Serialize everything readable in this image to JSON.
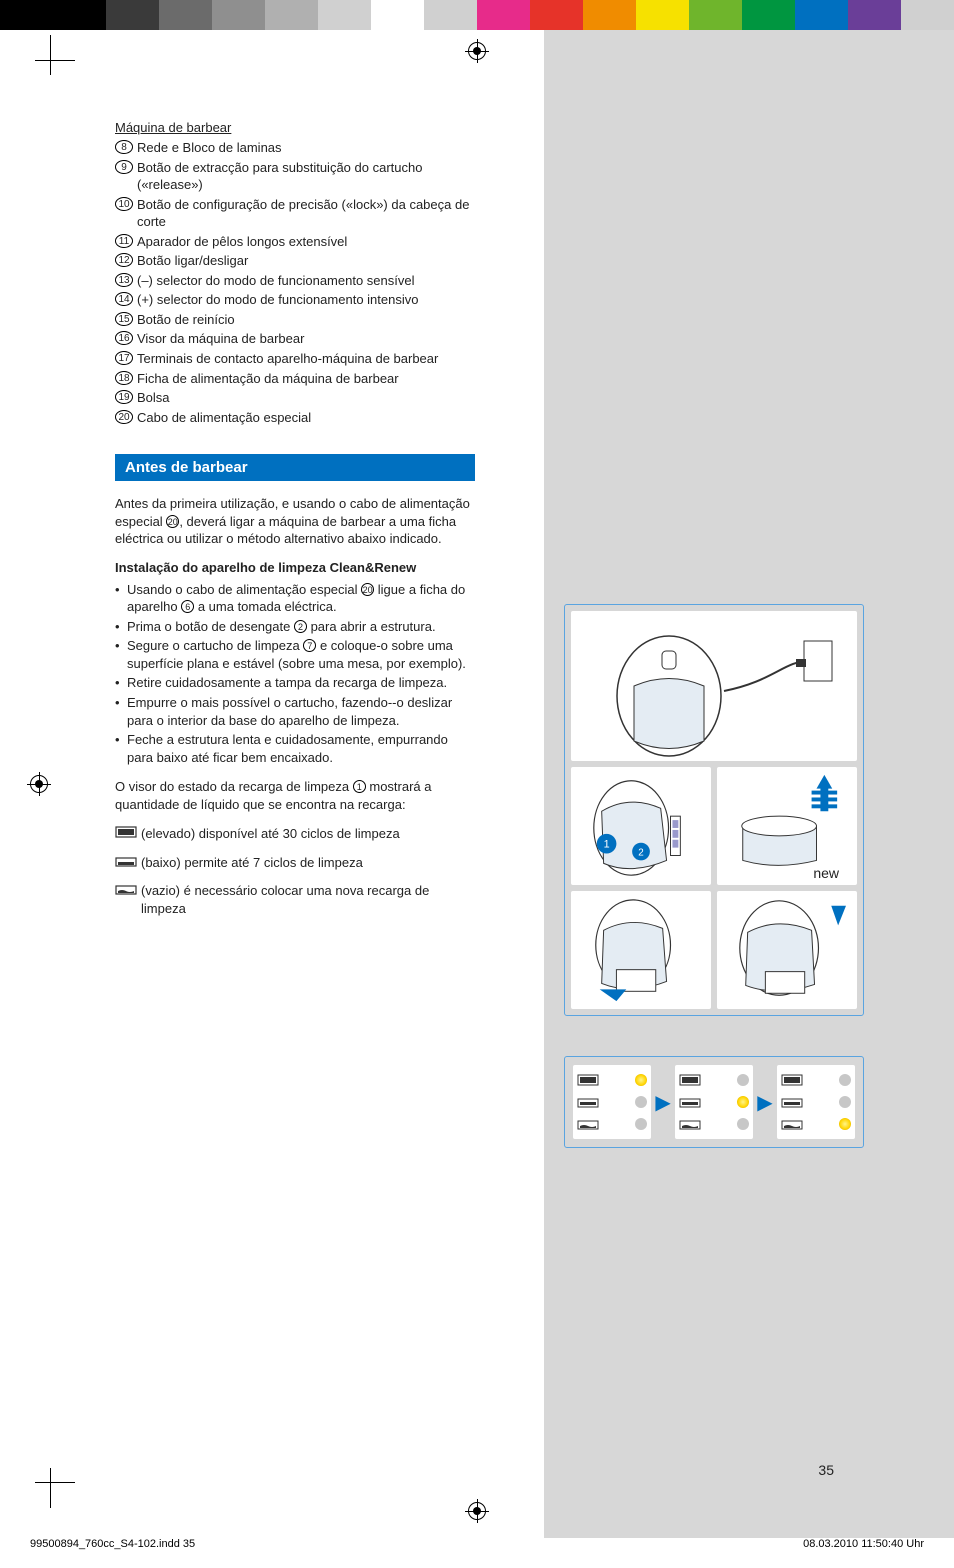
{
  "colorBars": [
    "#000000",
    "#000000",
    "#3a3a3a",
    "#6b6b6b",
    "#8f8f8f",
    "#b0b0b0",
    "#d0d0d0",
    "#ffffff",
    "#d0d0d0",
    "#e72b8a",
    "#e63329",
    "#f08c00",
    "#f6e100",
    "#6fb52c",
    "#009640",
    "#0070c0",
    "#6a3e98",
    "#d0d0d0"
  ],
  "parts": {
    "title": "Máquina de barbear",
    "items": [
      {
        "n": "8",
        "t": "Rede e Bloco de laminas"
      },
      {
        "n": "9",
        "t": "Botão de extracção para substituição do cartucho («release»)"
      },
      {
        "n": "10",
        "t": "Botão de configuração de precisão («lock») da cabeça de corte"
      },
      {
        "n": "11",
        "t": "Aparador de pêlos longos extensível"
      },
      {
        "n": "12",
        "t": "Botão ligar/desligar"
      },
      {
        "n": "13",
        "t": "(–) selector do modo de funcionamento sensível"
      },
      {
        "n": "14",
        "t": "(+) selector do modo de funcionamento intensivo"
      },
      {
        "n": "15",
        "t": "Botão de reinício"
      },
      {
        "n": "16",
        "t": "Visor da máquina de barbear"
      },
      {
        "n": "17",
        "t": "Terminais de contacto aparelho-máquina de barbear"
      },
      {
        "n": "18",
        "t": "Ficha de alimentação da máquina de barbear"
      },
      {
        "n": "19",
        "t": "Bolsa"
      },
      {
        "n": "20",
        "t": "Cabo de alimentação especial"
      }
    ]
  },
  "section": {
    "header": "Antes de barbear"
  },
  "intro": "Antes da primeira utilização, e usando o cabo de alimentação especial ⑳, deverá ligar a máquina de barbear a uma ficha eléctrica ou utilizar o método alternativo abaixo indicado.",
  "install": {
    "heading": "Instalação do aparelho de limpeza Clean&Renew",
    "bullets": [
      "Usando o cabo de alimentação especial ⑳ ligue a ficha do aparelho ⑥ a uma tomada eléctrica.",
      "Prima o botão de desengate ② para abrir a estrutura.",
      "Segure o cartucho de limpeza ⑦ e coloque-o sobre uma superfície plana e estável (sobre uma mesa, por exemplo).",
      "Retire cuidadosamente a tampa da recarga de limpeza.",
      "Empurre o mais possível o cartucho, fazendo--o deslizar para o interior da base do aparelho de limpeza.",
      "Feche a estrutura lenta e cuidadosamente, empurrando para baixo até ficar bem encaixado."
    ]
  },
  "visor": "O visor do estado da recarga de limpeza ① mostrará a quantidade de líquido que se encontra na recarga:",
  "statuses": [
    {
      "t": "(elevado) disponível até 30 ciclos de limpeza"
    },
    {
      "t": "(baixo) permite até 7 ciclos de limpeza"
    },
    {
      "t": "(vazio) é necessário colocar uma nova recarga de limpeza"
    }
  ],
  "newLabel": "new",
  "pageNum": "35",
  "footer": {
    "left": "99500894_760cc_S4-102.indd   35",
    "right": "08.03.2010   11:50:40 Uhr"
  }
}
